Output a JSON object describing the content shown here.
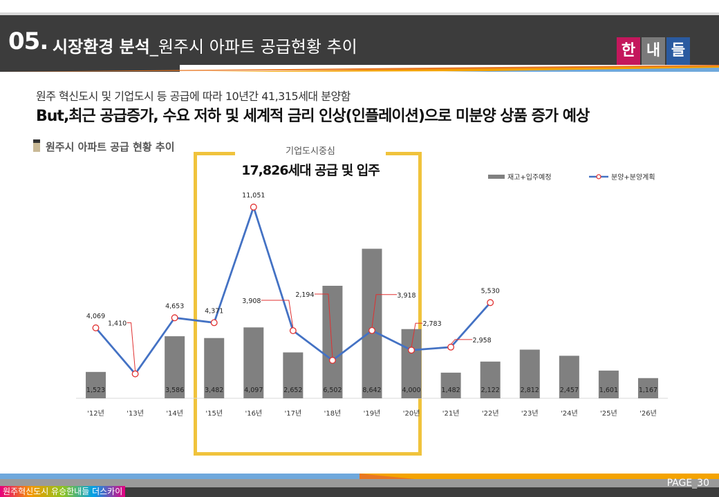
{
  "header": {
    "number": "05.",
    "title_bold": "시장환경 분석",
    "title_rest": "_원주시 아파트 공급현황 추이",
    "logo_chars": [
      "한",
      "내",
      "들"
    ]
  },
  "colors": {
    "header_bg": "#3c3c3c",
    "logo": [
      "#c4175c",
      "#7a7a7a",
      "#2a5aa0"
    ],
    "bar": "#808080",
    "line": "#4472c4",
    "marker_edge": "#e03030",
    "highlight": "#f0c33c"
  },
  "subtitle_1": "원주 혁신도시 및 기업도시 등 공급에 따라 10년간 41,315세대 분양함",
  "subtitle_2": "But,최근 공급증가, 수요 저하 및 세계적 금리 인상(인플레이션)으로 미분양 상품 증가 예상",
  "section_title": "원주시 아파트 공급 현황 추이",
  "highlight": {
    "sub": "기업도시중심",
    "main": "17,826세대 공급 및 입주"
  },
  "footer": {
    "left_text": "원주혁신도시 유승한내들 더스카이",
    "page": "PAGE_30"
  },
  "chart_data": {
    "type": "bar",
    "categories": [
      "'12년",
      "'13년",
      "'14년",
      "'15년",
      "'16년",
      "'17년",
      "'18년",
      "'19년",
      "'20년",
      "'21년",
      "'22년",
      "'23년",
      "'24년",
      "'25년",
      "'26년"
    ],
    "series": [
      {
        "name": "재고+입주예정",
        "type": "bar",
        "values": [
          1523,
          null,
          3586,
          3482,
          4097,
          2652,
          6502,
          8642,
          4000,
          1482,
          2122,
          2812,
          2457,
          1601,
          1167
        ]
      },
      {
        "name": "분양+분양계획",
        "type": "line",
        "values": [
          4069,
          1410,
          4653,
          4371,
          11051,
          3908,
          2194,
          3918,
          2783,
          2958,
          5530,
          null,
          null,
          null,
          null
        ]
      }
    ],
    "legend_position": "top-right",
    "grid": false
  }
}
